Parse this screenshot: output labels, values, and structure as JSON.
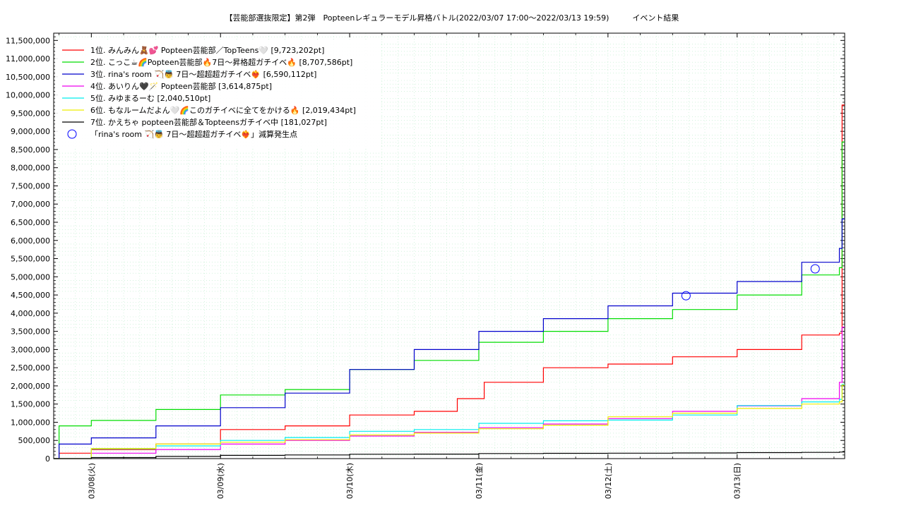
{
  "chart_data": {
    "type": "line",
    "title": "【芸能部選抜限定】第2弾　Popteenレギュラーモデル昇格バトル(2022/03/07 17:00〜2022/03/13 19:59)　　　イベント結果",
    "xlabel": "",
    "ylabel": "",
    "x_ticks": [
      "03/08(火)",
      "03/09(水)",
      "03/10(木)",
      "03/11(金)",
      "03/12(土)",
      "03/13(日)"
    ],
    "x_range": [
      "2022-03-07 17:00",
      "2022-03-13 19:59"
    ],
    "y_ticks": [
      "0",
      "500,000",
      "1,000,000",
      "1,500,000",
      "2,000,000",
      "2,500,000",
      "3,000,000",
      "3,500,000",
      "4,000,000",
      "4,500,000",
      "5,000,000",
      "5,500,000",
      "6,000,000",
      "6,500,000",
      "7,000,000",
      "7,500,000",
      "8,000,000",
      "8,500,000",
      "9,000,000",
      "9,500,000",
      "10,000,000",
      "10,500,000",
      "11,000,000",
      "11,500,000"
    ],
    "ylim": [
      0,
      11700000
    ],
    "grid": true,
    "legend_position": "top-left",
    "series": [
      {
        "name": "1位. みんみん🧸💕 Popteen芸能部／TopTeens🤍 [9,723,202pt]",
        "color": "#ff0000",
        "points": [
          [
            "03/07 17:00",
            0
          ],
          [
            "03/07 18:00",
            150000
          ],
          [
            "03/08 00:00",
            250000
          ],
          [
            "03/08 12:00",
            400000
          ],
          [
            "03/09 00:00",
            800000
          ],
          [
            "03/09 12:00",
            900000
          ],
          [
            "03/10 00:00",
            1200000
          ],
          [
            "03/10 12:00",
            1300000
          ],
          [
            "03/10 20:00",
            1650000
          ],
          [
            "03/11 01:00",
            2100000
          ],
          [
            "03/11 12:00",
            2500000
          ],
          [
            "03/12 00:00",
            2600000
          ],
          [
            "03/12 12:00",
            2800000
          ],
          [
            "03/13 00:00",
            3000000
          ],
          [
            "03/13 12:00",
            3400000
          ],
          [
            "03/13 19:00",
            3450000
          ],
          [
            "03/13 19:30",
            9723202
          ],
          [
            "03/13 19:59",
            9723202
          ]
        ]
      },
      {
        "name": "2位. こっこ☕🌈Popteen芸能部🔥7日〜昇格超ガチイベ🔥 [8,707,586pt]",
        "color": "#00dd00",
        "points": [
          [
            "03/07 17:00",
            0
          ],
          [
            "03/07 18:00",
            900000
          ],
          [
            "03/08 00:00",
            1050000
          ],
          [
            "03/08 12:00",
            1350000
          ],
          [
            "03/09 00:00",
            1750000
          ],
          [
            "03/09 12:00",
            1900000
          ],
          [
            "03/10 00:00",
            2450000
          ],
          [
            "03/10 12:00",
            2700000
          ],
          [
            "03/11 00:00",
            3200000
          ],
          [
            "03/11 12:00",
            3500000
          ],
          [
            "03/12 00:00",
            3850000
          ],
          [
            "03/12 12:00",
            4100000
          ],
          [
            "03/13 00:00",
            4500000
          ],
          [
            "03/13 12:00",
            5050000
          ],
          [
            "03/13 19:00",
            5250000
          ],
          [
            "03/13 19:30",
            8707586
          ],
          [
            "03/13 19:59",
            8707586
          ]
        ]
      },
      {
        "name": "3位. rina's room 🏹👼 7日〜超超超ガチイベ❤️‍🔥 [6,590,112pt]",
        "color": "#0000cc",
        "points": [
          [
            "03/07 17:00",
            0
          ],
          [
            "03/07 18:00",
            400000
          ],
          [
            "03/08 00:00",
            570000
          ],
          [
            "03/08 12:00",
            900000
          ],
          [
            "03/09 00:00",
            1400000
          ],
          [
            "03/09 12:00",
            1800000
          ],
          [
            "03/10 00:00",
            2450000
          ],
          [
            "03/10 12:00",
            3000000
          ],
          [
            "03/11 00:00",
            3500000
          ],
          [
            "03/11 12:00",
            3850000
          ],
          [
            "03/12 00:00",
            4200000
          ],
          [
            "03/12 12:00",
            4550000
          ],
          [
            "03/13 00:00",
            4870000
          ],
          [
            "03/13 12:00",
            5400000
          ],
          [
            "03/13 19:00",
            5780000
          ],
          [
            "03/13 19:30",
            6590112
          ],
          [
            "03/13 19:59",
            6590112
          ]
        ]
      },
      {
        "name": "4位. あいりん🖤🪄 Popteen芸能部 [3,614,875pt]",
        "color": "#ee00ee",
        "points": [
          [
            "03/07 17:00",
            0
          ],
          [
            "03/08 00:00",
            150000
          ],
          [
            "03/08 12:00",
            250000
          ],
          [
            "03/09 00:00",
            400000
          ],
          [
            "03/09 12:00",
            500000
          ],
          [
            "03/10 00:00",
            620000
          ],
          [
            "03/10 12:00",
            720000
          ],
          [
            "03/11 00:00",
            850000
          ],
          [
            "03/11 12:00",
            950000
          ],
          [
            "03/12 00:00",
            1100000
          ],
          [
            "03/12 12:00",
            1300000
          ],
          [
            "03/13 00:00",
            1450000
          ],
          [
            "03/13 12:00",
            1650000
          ],
          [
            "03/13 19:00",
            2100000
          ],
          [
            "03/13 19:30",
            3614875
          ],
          [
            "03/13 19:59",
            3614875
          ]
        ]
      },
      {
        "name": "5位. みゆまるーむ [2,040,510pt]",
        "color": "#00eeee",
        "points": [
          [
            "03/07 17:00",
            0
          ],
          [
            "03/08 00:00",
            270000
          ],
          [
            "03/08 12:00",
            350000
          ],
          [
            "03/09 00:00",
            500000
          ],
          [
            "03/09 12:00",
            580000
          ],
          [
            "03/10 00:00",
            750000
          ],
          [
            "03/10 12:00",
            800000
          ],
          [
            "03/11 00:00",
            970000
          ],
          [
            "03/11 12:00",
            1040000
          ],
          [
            "03/12 00:00",
            1060000
          ],
          [
            "03/12 12:00",
            1200000
          ],
          [
            "03/13 00:00",
            1460000
          ],
          [
            "03/13 12:00",
            1560000
          ],
          [
            "03/13 19:00",
            1630000
          ],
          [
            "03/13 19:30",
            2040510
          ],
          [
            "03/13 19:59",
            2040510
          ]
        ]
      },
      {
        "name": "6位. もなルームだよん🤍🌈このガチイベに全てをかける🔥 [2,019,434pt]",
        "color": "#eeee00",
        "points": [
          [
            "03/07 17:00",
            0
          ],
          [
            "03/08 00:00",
            280000
          ],
          [
            "03/08 12:00",
            400000
          ],
          [
            "03/09 00:00",
            450000
          ],
          [
            "03/09 12:00",
            520000
          ],
          [
            "03/10 00:00",
            650000
          ],
          [
            "03/10 12:00",
            700000
          ],
          [
            "03/11 00:00",
            820000
          ],
          [
            "03/11 12:00",
            920000
          ],
          [
            "03/12 00:00",
            1150000
          ],
          [
            "03/12 12:00",
            1250000
          ],
          [
            "03/13 00:00",
            1380000
          ],
          [
            "03/13 12:00",
            1500000
          ],
          [
            "03/13 19:00",
            1560000
          ],
          [
            "03/13 19:30",
            2019434
          ],
          [
            "03/13 19:59",
            2019434
          ]
        ]
      },
      {
        "name": "7位. かえちゃ popteen芸能部＆Topteensガチイベ中 [181,027pt]",
        "color": "#000000",
        "points": [
          [
            "03/07 17:00",
            0
          ],
          [
            "03/08 00:00",
            30000
          ],
          [
            "03/08 12:00",
            60000
          ],
          [
            "03/09 00:00",
            90000
          ],
          [
            "03/09 12:00",
            100000
          ],
          [
            "03/10 00:00",
            120000
          ],
          [
            "03/10 12:00",
            125000
          ],
          [
            "03/11 00:00",
            140000
          ],
          [
            "03/11 12:00",
            145000
          ],
          [
            "03/12 00:00",
            150000
          ],
          [
            "03/12 12:00",
            155000
          ],
          [
            "03/13 00:00",
            165000
          ],
          [
            "03/13 12:00",
            170000
          ],
          [
            "03/13 19:00",
            180000
          ],
          [
            "03/13 19:59",
            181027
          ]
        ]
      }
    ],
    "markers": {
      "name": "「rina's room 🏹👼 7日〜超超超ガチイベ❤️‍🔥」減算発生点",
      "color": "#0000ff",
      "points": [
        [
          "03/12 14:30",
          4480000
        ],
        [
          "03/13 14:30",
          5220000
        ]
      ]
    }
  }
}
